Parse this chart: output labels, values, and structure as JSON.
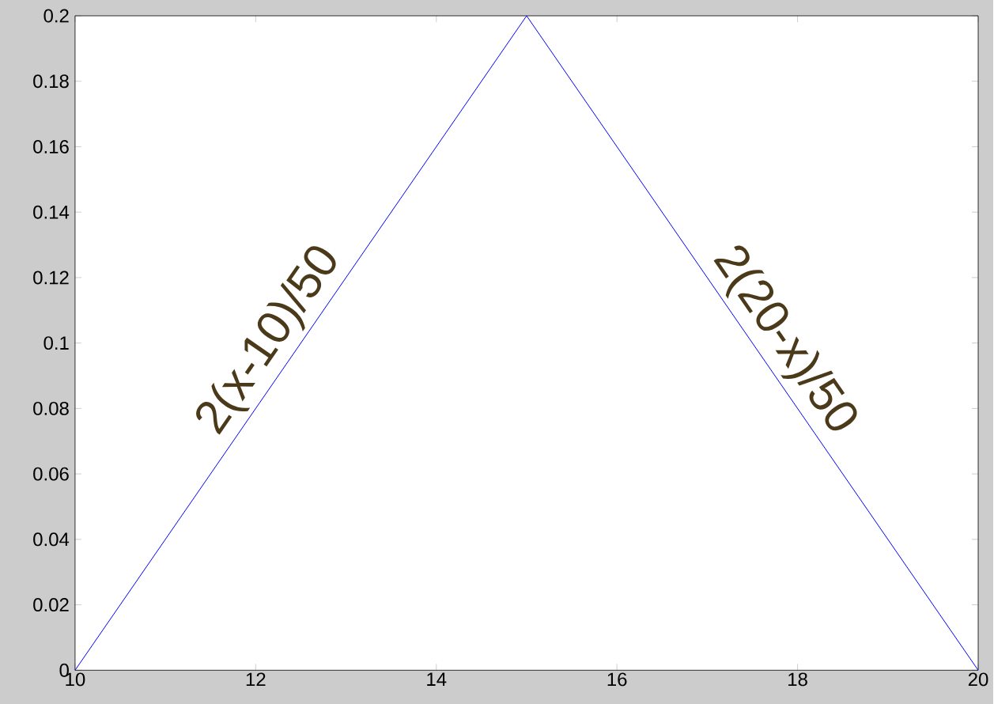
{
  "chart_data": {
    "type": "line",
    "x": [
      10,
      15,
      20
    ],
    "values": [
      0,
      0.2,
      0
    ],
    "color": "#0000ff",
    "xlim": [
      10,
      20
    ],
    "ylim": [
      0,
      0.2
    ],
    "xticks": [
      10,
      12,
      14,
      16,
      18,
      20
    ],
    "yticks": [
      0,
      0.02,
      0.04,
      0.06,
      0.08,
      0.1,
      0.12,
      0.14,
      0.16,
      0.18,
      0.2
    ],
    "annotations": [
      {
        "text": "2(x-10)/50",
        "x": 12.4,
        "y": 0.096
      },
      {
        "text": "2(20-x)/50",
        "x": 17.6,
        "y": 0.096
      }
    ]
  }
}
